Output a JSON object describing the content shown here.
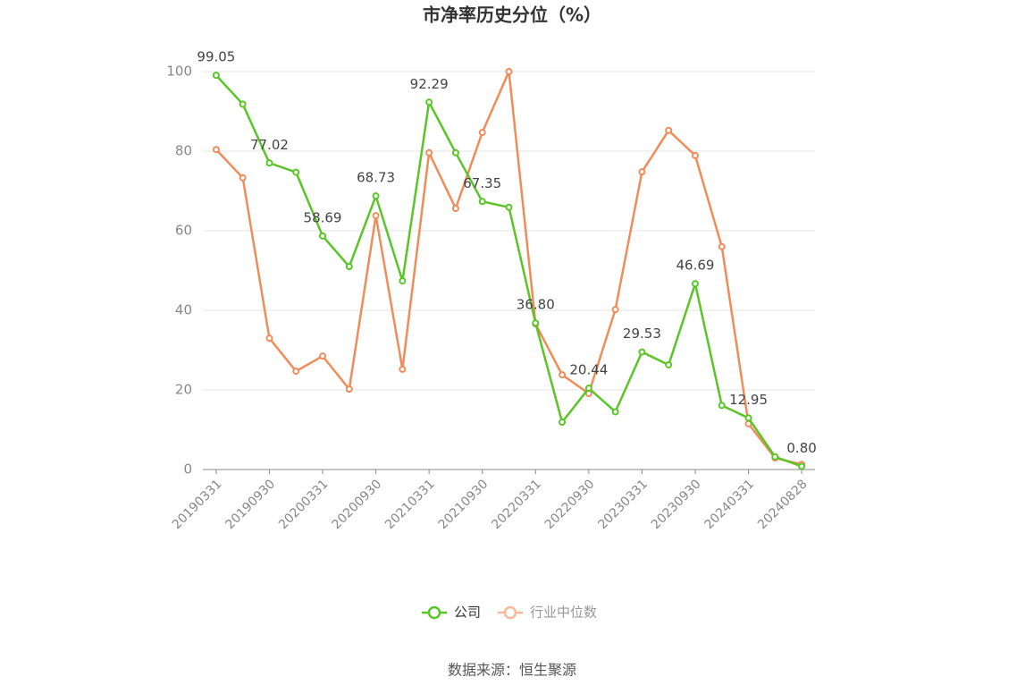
{
  "chart_data": {
    "type": "line",
    "title": "市净率历史分位（%）",
    "categories": [
      "20190331",
      null,
      "20190930",
      null,
      "20200331",
      null,
      "20200930",
      null,
      "20210331",
      null,
      "20210930",
      null,
      "20220331",
      null,
      "20220930",
      null,
      "20230331",
      null,
      "20230930",
      null,
      "20240331",
      null,
      "20240828"
    ],
    "series": [
      {
        "name": "公司",
        "color": "#5ac526",
        "values": [
          99.05,
          91.8,
          77.02,
          74.7,
          58.69,
          51.0,
          68.73,
          47.4,
          92.29,
          79.6,
          67.35,
          65.9,
          36.8,
          11.9,
          20.44,
          14.5,
          29.53,
          26.3,
          46.69,
          16.1,
          12.95,
          3.2,
          0.8
        ],
        "value_labels": [
          "99.05",
          null,
          "77.02",
          null,
          "58.69",
          null,
          "68.73",
          null,
          "92.29",
          null,
          "67.35",
          null,
          "36.80",
          null,
          "20.44",
          null,
          "29.53",
          null,
          "46.69",
          null,
          "12.95",
          null,
          "0.80"
        ]
      },
      {
        "name": "行业中位数",
        "color": "#f08c5a",
        "values": [
          80.4,
          73.3,
          33.0,
          24.7,
          28.5,
          20.2,
          63.8,
          25.2,
          79.6,
          65.6,
          84.7,
          100,
          36.6,
          23.8,
          19.1,
          40.2,
          74.8,
          85.2,
          78.9,
          56.0,
          11.5,
          2.9,
          1.3
        ]
      }
    ],
    "ylim": [
      0,
      100
    ],
    "yticks": [
      0,
      20,
      40,
      60,
      80,
      100
    ],
    "grid": true,
    "source": "数据来源：恒生聚源"
  }
}
